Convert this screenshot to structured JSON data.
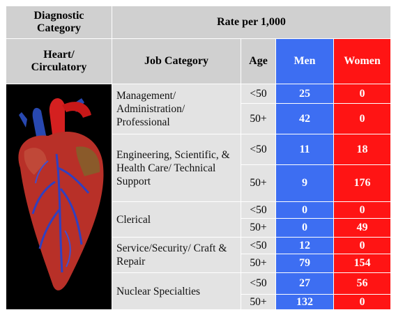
{
  "header": {
    "diagnostic": "Diagnostic Category",
    "rate": "Rate per 1,000"
  },
  "subheader": {
    "diagnosis": "Heart/ Circulatory",
    "job": "Job Category",
    "age": "Age",
    "men": "Men",
    "women": "Women"
  },
  "groups": [
    {
      "job": "Management/ Administration/ Professional",
      "rows": [
        {
          "age": "<50",
          "men": 25,
          "women": 0
        },
        {
          "age": "50+",
          "men": 42,
          "women": 0
        }
      ]
    },
    {
      "job": "Engineering, Scientific, & Health Care/ Technical Support",
      "rows": [
        {
          "age": "<50",
          "men": 11,
          "women": 18
        },
        {
          "age": "50+",
          "men": 9,
          "women": 176
        }
      ]
    },
    {
      "job": "Clerical",
      "rows": [
        {
          "age": "<50",
          "men": 0,
          "women": 0
        },
        {
          "age": "50+",
          "men": 0,
          "women": 49
        }
      ]
    },
    {
      "job": "Service/Security/ Craft & Repair",
      "rows": [
        {
          "age": "<50",
          "men": 12,
          "women": 0
        },
        {
          "age": "50+",
          "men": 79,
          "women": 154
        }
      ]
    },
    {
      "job": "Nuclear Specialties",
      "rows": [
        {
          "age": "<50",
          "men": 27,
          "women": 56
        },
        {
          "age": "50+",
          "men": 132,
          "women": 0
        }
      ]
    }
  ]
}
